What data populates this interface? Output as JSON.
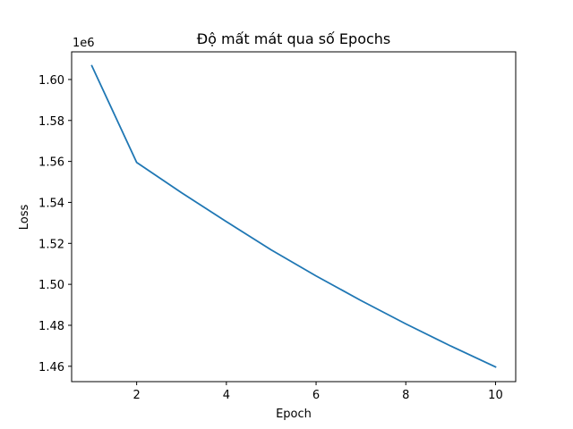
{
  "chart_data": {
    "type": "line",
    "title": "Độ mất mát qua số Epochs",
    "xlabel": "Epoch",
    "ylabel": "Loss",
    "y_offset_label": "1e6",
    "x_ticks": [
      2,
      4,
      6,
      8,
      10
    ],
    "y_ticks": [
      1.46,
      1.48,
      1.5,
      1.52,
      1.54,
      1.56,
      1.58,
      1.6
    ],
    "y_tick_labels": [
      "1.46",
      "1.48",
      "1.50",
      "1.52",
      "1.54",
      "1.56",
      "1.58",
      "1.60"
    ],
    "xlim": [
      0.55,
      10.45
    ],
    "ylim": [
      1.4525,
      1.6135
    ],
    "grid": false,
    "series": [
      {
        "color": "#1f77b4",
        "x": [
          1,
          2,
          3,
          4,
          5,
          6,
          7,
          8,
          9,
          10
        ],
        "y": [
          1.6067,
          1.5595,
          1.5447,
          1.5306,
          1.5168,
          1.5041,
          1.4921,
          1.4807,
          1.4699,
          1.4597
        ]
      }
    ]
  }
}
